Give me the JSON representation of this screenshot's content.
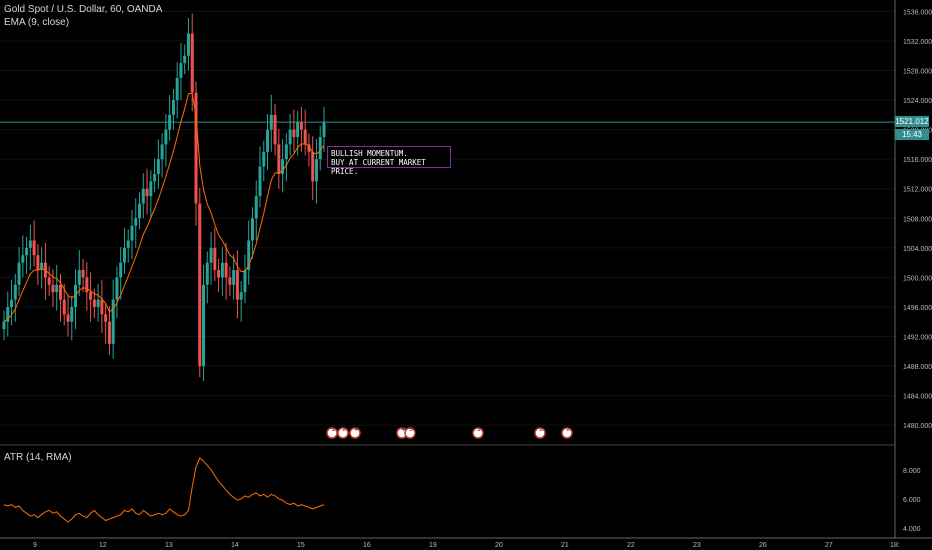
{
  "header": {
    "symbol_line": "Gold Spot / U.S. Dollar, 60, OANDA",
    "ema_label": "EMA (9, close)",
    "atr_label": "ATR (14, RMA)"
  },
  "annotation": {
    "line1": "BULLISH MOMENTUM.",
    "line2": "BUY AT CURRENT MARKET PRICE."
  },
  "price_tags": {
    "current_price": "1521.012",
    "countdown": "15:43"
  },
  "colors": {
    "bull": "#26a69a",
    "bear": "#ef5350",
    "ema": "#ff6d00",
    "atr": "#ff6d00",
    "price_line": "#2f8f8f",
    "annotation_border": "#7b2fa5"
  },
  "event_markers": [
    "1",
    "2",
    "4",
    "4",
    "5",
    "2",
    "2",
    "2"
  ],
  "chart_data": {
    "type": "candlestick",
    "price_axis": {
      "ticks": [
        1480,
        1484,
        1488,
        1492,
        1496,
        1500,
        1504,
        1508,
        1512,
        1516,
        1520,
        1524,
        1528,
        1532,
        1536
      ],
      "tick_labels": [
        "1480.000",
        "1484.000",
        "1488.000",
        "1492.000",
        "1496.000",
        "1500.000",
        "1504.000",
        "1508.000",
        "1512.000",
        "1516.000",
        "1520.000",
        "1524.000",
        "1528.000",
        "1532.000",
        "1536.000"
      ],
      "ylim": [
        1478,
        1537
      ]
    },
    "atr_axis": {
      "ticks": [
        4,
        6,
        8
      ],
      "tick_labels": [
        "4.000",
        "6.000",
        "8.000"
      ],
      "ylim": [
        3.5,
        9.5
      ]
    },
    "date_axis": {
      "labels": [
        "9",
        "12",
        "13",
        "14",
        "15",
        "16",
        "19",
        "20",
        "21",
        "22",
        "23",
        "26",
        "27",
        "18:"
      ]
    },
    "current_price": 1521.012,
    "candles_close": [
      1494,
      1496,
      1497,
      1499,
      1502,
      1503,
      1504,
      1505,
      1503,
      1501,
      1502,
      1500,
      1499,
      1498,
      1499,
      1497,
      1495,
      1494,
      1496,
      1499,
      1501,
      1500,
      1498,
      1497,
      1496,
      1497,
      1495,
      1494,
      1491,
      1497,
      1500,
      1502,
      1504,
      1505,
      1507,
      1508,
      1510,
      1512,
      1511,
      1513,
      1514,
      1516,
      1518,
      1520,
      1522,
      1524,
      1527,
      1529,
      1530,
      1533,
      1525,
      1510,
      1488,
      1499,
      1502,
      1504,
      1501,
      1500,
      1502,
      1500,
      1499,
      1501,
      1497,
      1498,
      1501,
      1505,
      1508,
      1511,
      1515,
      1517,
      1520,
      1522,
      1518,
      1514,
      1516,
      1518,
      1520,
      1519,
      1521,
      1520,
      1518,
      1517,
      1513,
      1516,
      1519,
      1521
    ],
    "atr_values": [
      5.6,
      5.5,
      5.6,
      5.4,
      5.5,
      5.2,
      5.0,
      4.8,
      4.9,
      4.7,
      4.9,
      5.1,
      5.2,
      5.0,
      5.1,
      4.8,
      4.6,
      4.4,
      4.6,
      4.9,
      5.0,
      4.8,
      4.7,
      5.0,
      5.2,
      4.9,
      4.7,
      4.5,
      4.6,
      4.7,
      4.8,
      4.9,
      5.2,
      5.1,
      5.3,
      5.0,
      4.9,
      5.2,
      5.0,
      4.8,
      4.9,
      5.0,
      4.9,
      5.0,
      5.3,
      5.1,
      4.9,
      4.8,
      4.9,
      5.2,
      6.8,
      8.2,
      8.8,
      8.6,
      8.3,
      8.0,
      7.6,
      7.2,
      6.9,
      6.6,
      6.3,
      6.1,
      5.9,
      6.0,
      6.2,
      6.1,
      6.3,
      6.4,
      6.2,
      6.3,
      6.1,
      6.3,
      6.2,
      6.0,
      5.9,
      5.7,
      5.6,
      5.7,
      5.5,
      5.6,
      5.5,
      5.4,
      5.3,
      5.4,
      5.5,
      5.6
    ]
  }
}
